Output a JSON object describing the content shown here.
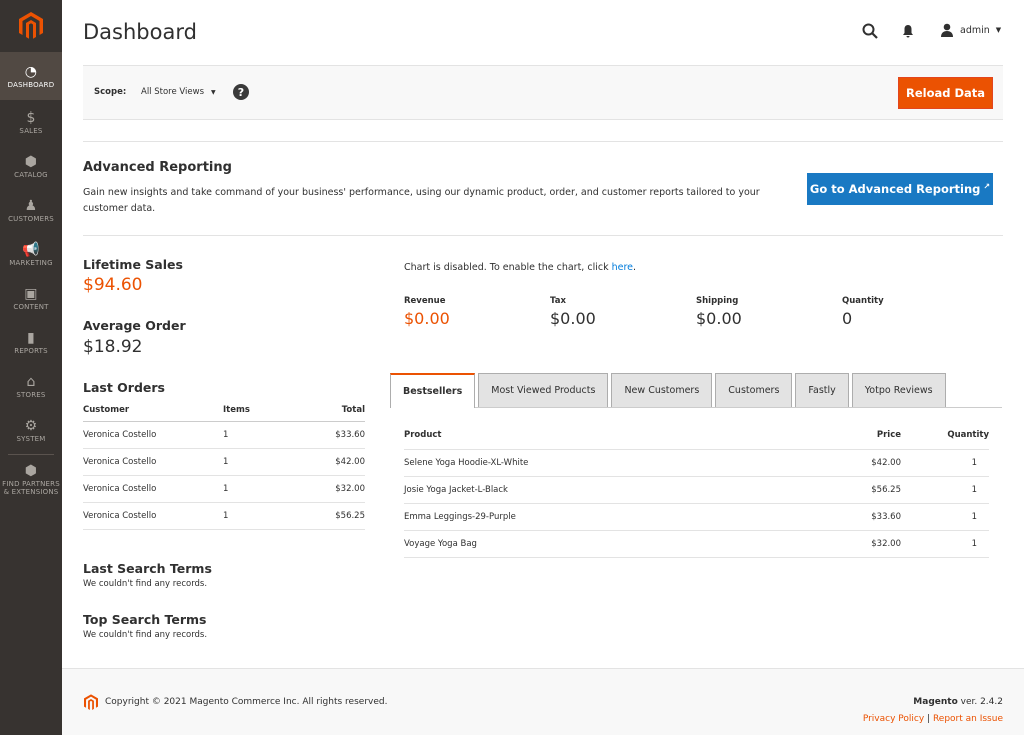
{
  "sidebar": {
    "items": [
      {
        "label": "DASHBOARD",
        "icon": "dashboard-icon",
        "active": true
      },
      {
        "label": "SALES",
        "icon": "dollar-icon"
      },
      {
        "label": "CATALOG",
        "icon": "box-icon"
      },
      {
        "label": "CUSTOMERS",
        "icon": "person-icon"
      },
      {
        "label": "MARKETING",
        "icon": "megaphone-icon"
      },
      {
        "label": "CONTENT",
        "icon": "layout-icon"
      },
      {
        "label": "REPORTS",
        "icon": "bar-chart-icon"
      },
      {
        "label": "STORES",
        "icon": "store-icon"
      },
      {
        "label": "SYSTEM",
        "icon": "gear-icon"
      },
      {
        "label": "FIND PARTNERS & EXTENSIONS",
        "icon": "cube-icon"
      }
    ]
  },
  "header": {
    "title": "Dashboard",
    "user": "admin"
  },
  "scope": {
    "label": "Scope:",
    "value": "All Store Views",
    "reload": "Reload Data"
  },
  "advanced": {
    "title": "Advanced Reporting",
    "text": "Gain new insights and take command of your business' performance, using our dynamic product, order, and customer reports tailored to your customer data.",
    "button": "Go to Advanced Reporting"
  },
  "lifetime": {
    "label": "Lifetime Sales",
    "value": "$94.60"
  },
  "average": {
    "label": "Average Order",
    "value": "$18.92"
  },
  "chart_msg": {
    "text": "Chart is disabled. To enable the chart, click ",
    "link": "here",
    "end": "."
  },
  "totals": [
    {
      "label": "Revenue",
      "value": "$0.00"
    },
    {
      "label": "Tax",
      "value": "$0.00"
    },
    {
      "label": "Shipping",
      "value": "$0.00"
    },
    {
      "label": "Quantity",
      "value": "0"
    }
  ],
  "last_orders": {
    "title": "Last Orders",
    "headers": [
      "Customer",
      "Items",
      "Total"
    ],
    "rows": [
      [
        "Veronica Costello",
        "1",
        "$33.60"
      ],
      [
        "Veronica Costello",
        "1",
        "$42.00"
      ],
      [
        "Veronica Costello",
        "1",
        "$32.00"
      ],
      [
        "Veronica Costello",
        "1",
        "$56.25"
      ]
    ]
  },
  "last_search": {
    "title": "Last Search Terms",
    "empty": "We couldn't find any records."
  },
  "top_search": {
    "title": "Top Search Terms",
    "empty": "We couldn't find any records."
  },
  "tabs": [
    "Bestsellers",
    "Most Viewed Products",
    "New Customers",
    "Customers",
    "Fastly",
    "Yotpo Reviews"
  ],
  "bestsellers": {
    "headers": [
      "Product",
      "Price",
      "Quantity"
    ],
    "rows": [
      [
        "Selene Yoga Hoodie-XL-White",
        "$42.00",
        "1"
      ],
      [
        "Josie Yoga Jacket-L-Black",
        "$56.25",
        "1"
      ],
      [
        "Emma Leggings-29-Purple",
        "$33.60",
        "1"
      ],
      [
        "Voyage Yoga Bag",
        "$32.00",
        "1"
      ]
    ]
  },
  "footer": {
    "copyright": "Copyright © 2021 Magento Commerce Inc. All rights reserved.",
    "brand": "Magento",
    "version": " ver. 2.4.2",
    "privacy": "Privacy Policy",
    "separator": " | ",
    "report": "Report an Issue"
  },
  "colors": {
    "accent": "#eb5202",
    "blue": "#1979c3",
    "sidebar": "#373330"
  }
}
